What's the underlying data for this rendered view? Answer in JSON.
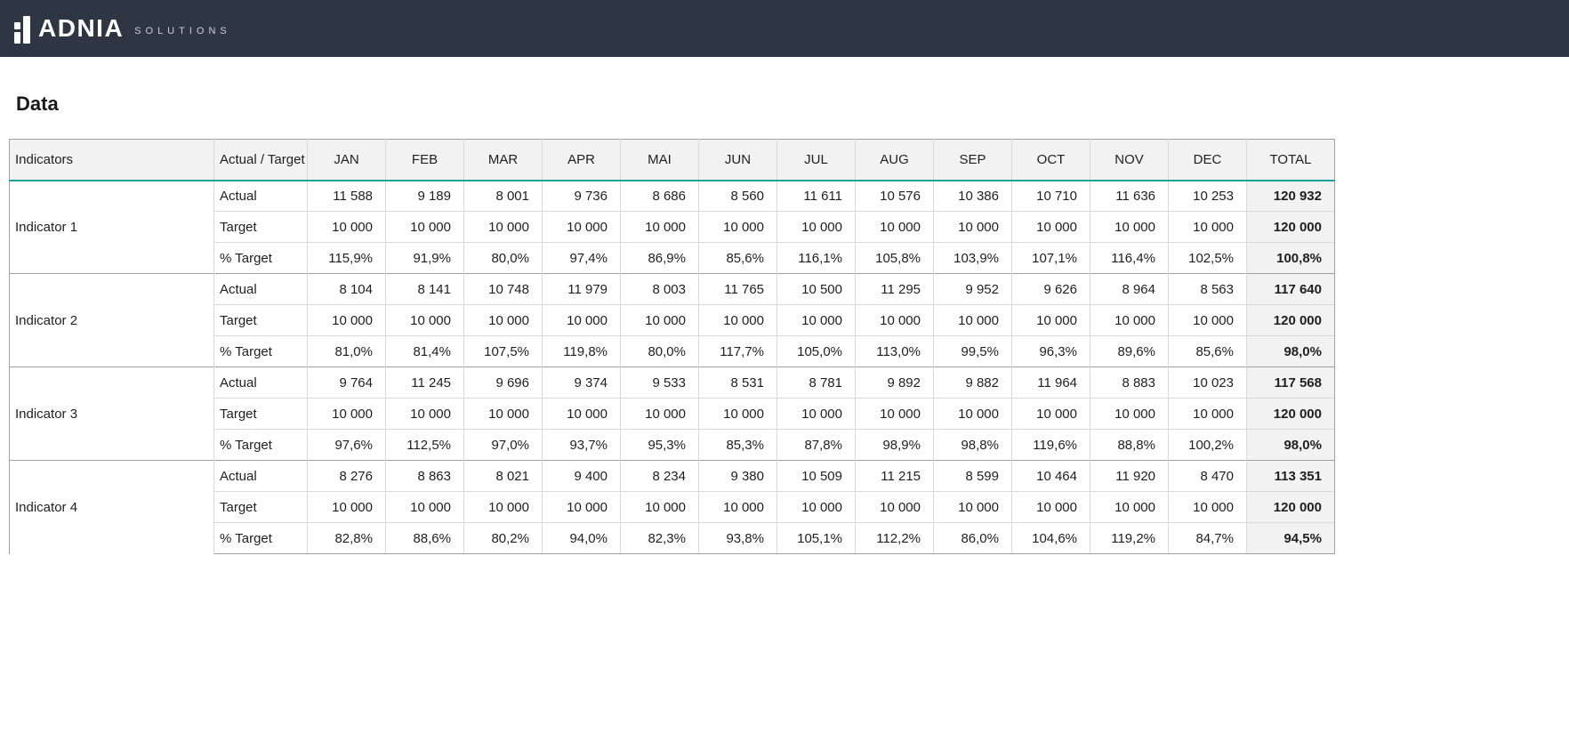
{
  "header": {
    "brand": "ADNIA",
    "brand_sub": "SOLUTIONS"
  },
  "page_title": "Data",
  "colors": {
    "accent_teal": "#1aa294",
    "topbar_background": "#2d3642",
    "table_header_background": "#f2f2f2"
  },
  "table": {
    "columns": [
      "Indicators",
      "Actual / Target",
      "JAN",
      "FEB",
      "MAR",
      "APR",
      "MAI",
      "JUN",
      "JUL",
      "AUG",
      "SEP",
      "OCT",
      "NOV",
      "DEC",
      "TOTAL"
    ],
    "row_labels": [
      "Actual",
      "Target",
      "% Target"
    ],
    "indicators": [
      {
        "name": "Indicator 1",
        "rows": [
          {
            "label": "Actual",
            "values": [
              "11 588",
              "9 189",
              "8 001",
              "9 736",
              "8 686",
              "8 560",
              "11 611",
              "10 576",
              "10 386",
              "10 710",
              "11 636",
              "10 253"
            ],
            "total": "120 932"
          },
          {
            "label": "Target",
            "values": [
              "10 000",
              "10 000",
              "10 000",
              "10 000",
              "10 000",
              "10 000",
              "10 000",
              "10 000",
              "10 000",
              "10 000",
              "10 000",
              "10 000"
            ],
            "total": "120 000"
          },
          {
            "label": "% Target",
            "values": [
              "115,9%",
              "91,9%",
              "80,0%",
              "97,4%",
              "86,9%",
              "85,6%",
              "116,1%",
              "105,8%",
              "103,9%",
              "107,1%",
              "116,4%",
              "102,5%"
            ],
            "total": "100,8%"
          }
        ]
      },
      {
        "name": "Indicator 2",
        "rows": [
          {
            "label": "Actual",
            "values": [
              "8 104",
              "8 141",
              "10 748",
              "11 979",
              "8 003",
              "11 765",
              "10 500",
              "11 295",
              "9 952",
              "9 626",
              "8 964",
              "8 563"
            ],
            "total": "117 640"
          },
          {
            "label": "Target",
            "values": [
              "10 000",
              "10 000",
              "10 000",
              "10 000",
              "10 000",
              "10 000",
              "10 000",
              "10 000",
              "10 000",
              "10 000",
              "10 000",
              "10 000"
            ],
            "total": "120 000"
          },
          {
            "label": "% Target",
            "values": [
              "81,0%",
              "81,4%",
              "107,5%",
              "119,8%",
              "80,0%",
              "117,7%",
              "105,0%",
              "113,0%",
              "99,5%",
              "96,3%",
              "89,6%",
              "85,6%"
            ],
            "total": "98,0%"
          }
        ]
      },
      {
        "name": "Indicator 3",
        "rows": [
          {
            "label": "Actual",
            "values": [
              "9 764",
              "11 245",
              "9 696",
              "9 374",
              "9 533",
              "8 531",
              "8 781",
              "9 892",
              "9 882",
              "11 964",
              "8 883",
              "10 023"
            ],
            "total": "117 568"
          },
          {
            "label": "Target",
            "values": [
              "10 000",
              "10 000",
              "10 000",
              "10 000",
              "10 000",
              "10 000",
              "10 000",
              "10 000",
              "10 000",
              "10 000",
              "10 000",
              "10 000"
            ],
            "total": "120 000"
          },
          {
            "label": "% Target",
            "values": [
              "97,6%",
              "112,5%",
              "97,0%",
              "93,7%",
              "95,3%",
              "85,3%",
              "87,8%",
              "98,9%",
              "98,8%",
              "119,6%",
              "88,8%",
              "100,2%"
            ],
            "total": "98,0%"
          }
        ]
      },
      {
        "name": "Indicator 4",
        "rows": [
          {
            "label": "Actual",
            "values": [
              "8 276",
              "8 863",
              "8 021",
              "9 400",
              "8 234",
              "9 380",
              "10 509",
              "11 215",
              "8 599",
              "10 464",
              "11 920",
              "8 470"
            ],
            "total": "113 351"
          },
          {
            "label": "Target",
            "values": [
              "10 000",
              "10 000",
              "10 000",
              "10 000",
              "10 000",
              "10 000",
              "10 000",
              "10 000",
              "10 000",
              "10 000",
              "10 000",
              "10 000"
            ],
            "total": "120 000"
          },
          {
            "label": "% Target",
            "values": [
              "82,8%",
              "88,6%",
              "80,2%",
              "94,0%",
              "82,3%",
              "93,8%",
              "105,1%",
              "112,2%",
              "86,0%",
              "104,6%",
              "119,2%",
              "84,7%"
            ],
            "total": "94,5%"
          }
        ]
      }
    ]
  }
}
